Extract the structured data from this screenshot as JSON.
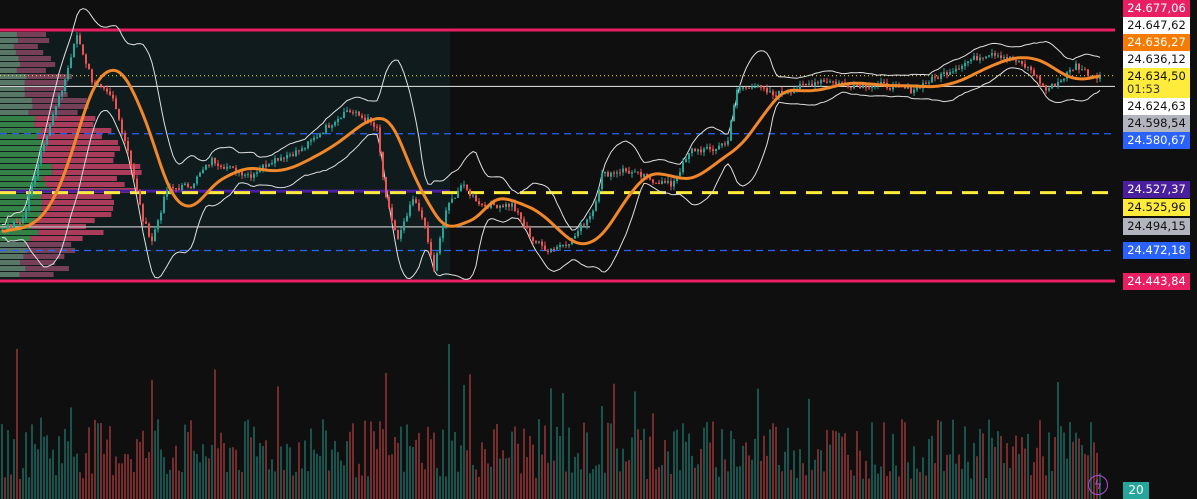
{
  "chart_data": {
    "type": "candlestick",
    "title": "",
    "xlabel": "",
    "ylabel": "",
    "ylim": [
      24443.84,
      24677.06
    ],
    "price_path": [
      [
        0,
        24491.2
      ],
      [
        7,
        24500.5
      ],
      [
        13,
        24565.6
      ],
      [
        20,
        24621.3
      ],
      [
        25,
        24672.4
      ],
      [
        30,
        24630.6
      ],
      [
        37,
        24612.0
      ],
      [
        42,
        24565.6
      ],
      [
        47,
        24500.5
      ],
      [
        50,
        24481.9
      ],
      [
        55,
        24528.4
      ],
      [
        63,
        24533.0
      ],
      [
        70,
        24556.3
      ],
      [
        77,
        24547.0
      ],
      [
        83,
        24542.3
      ],
      [
        90,
        24556.3
      ],
      [
        100,
        24565.6
      ],
      [
        107,
        24584.1
      ],
      [
        115,
        24602.7
      ],
      [
        122,
        24593.4
      ],
      [
        125,
        24584.1
      ],
      [
        128,
        24519.1
      ],
      [
        132,
        24481.9
      ],
      [
        137,
        24519.1
      ],
      [
        140,
        24505.2
      ],
      [
        144,
        24454.1
      ],
      [
        148,
        24509.8
      ],
      [
        153,
        24533.0
      ],
      [
        160,
        24514.5
      ],
      [
        170,
        24514.5
      ],
      [
        177,
        24481.9
      ],
      [
        182,
        24472.6
      ],
      [
        190,
        24481.9
      ],
      [
        197,
        24509.8
      ],
      [
        200,
        24542.3
      ],
      [
        207,
        24547.0
      ],
      [
        217,
        24537.7
      ],
      [
        223,
        24533.0
      ],
      [
        230,
        24565.6
      ],
      [
        237,
        24565.6
      ],
      [
        242,
        24574.8
      ],
      [
        245,
        24621.3
      ],
      [
        250,
        24626.0
      ],
      [
        257,
        24616.7
      ],
      [
        263,
        24621.3
      ],
      [
        273,
        24630.6
      ],
      [
        283,
        24626.0
      ],
      [
        293,
        24626.0
      ],
      [
        303,
        24621.3
      ],
      [
        313,
        24635.2
      ],
      [
        323,
        24649.2
      ],
      [
        330,
        24656.6
      ],
      [
        337,
        24649.2
      ],
      [
        343,
        24639.9
      ],
      [
        348,
        24621.3
      ],
      [
        353,
        24630.6
      ],
      [
        358,
        24644.5
      ],
      [
        363,
        24635.2
      ],
      [
        366,
        24634.5
      ]
    ],
    "indicators": [
      "bollinger-bands",
      "moving-average",
      "volume-profile",
      "volume"
    ],
    "levels": [
      {
        "price": 24677.06,
        "label": "24.677,06",
        "color": "#e91e63",
        "style": "solid"
      },
      {
        "price": 24647.62,
        "label": "24.647,62",
        "color": "#ffffff",
        "style": "none"
      },
      {
        "price": 24636.27,
        "label": "24.636,27",
        "color": "#f57c00",
        "style": "none"
      },
      {
        "price": 24636.12,
        "label": "24.636,12",
        "color": "#ffffff",
        "style": "none"
      },
      {
        "price": 24634.5,
        "label": "24.634,50",
        "color": "#ffeb3b",
        "style": "dotted",
        "countdown": "01:53"
      },
      {
        "price": 24624.63,
        "label": "24.624,63",
        "color": "#ffffff",
        "style": "solid"
      },
      {
        "price": 24598.54,
        "label": "24.598,54",
        "color": "#b2b5be",
        "style": "none"
      },
      {
        "price": 24580.67,
        "label": "24.580,67",
        "color": "#2962ff",
        "style": "dashed"
      },
      {
        "price": 24527.37,
        "label": "24.527,37",
        "color": "#4a1f9e",
        "style": "solid-left"
      },
      {
        "price": 24525.96,
        "label": "24.525,96",
        "color": "#ffeb3b",
        "style": "dashed-right"
      },
      {
        "price": 24494.15,
        "label": "24.494,15",
        "color": "#b2b5be",
        "style": "solid-left"
      },
      {
        "price": 24472.18,
        "label": "24.472,18",
        "color": "#2962ff",
        "style": "dashed"
      },
      {
        "price": 24443.84,
        "label": "24.443,84",
        "color": "#e91e63",
        "style": "solid"
      }
    ],
    "volume_label": "20"
  },
  "colors": {
    "up": "#26a69a",
    "down": "#ef5350",
    "ma": "#f0872a",
    "bands": "#e0e0e0"
  }
}
